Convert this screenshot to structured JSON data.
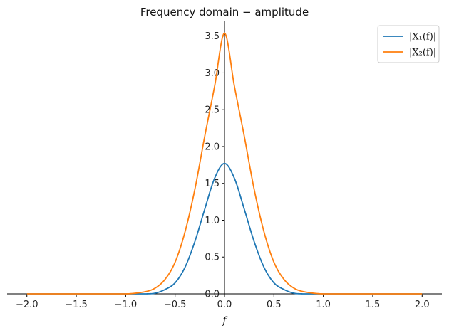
{
  "chart_data": {
    "type": "line",
    "title": "Frequency domain − amplitude",
    "xlabel": "f",
    "ylabel": "",
    "xlim": [
      -2.0,
      2.0
    ],
    "ylim": [
      0.0,
      3.7
    ],
    "x_ticks": [
      "−2.0",
      "−1.5",
      "−1.0",
      "−0.5",
      "0.0",
      "0.5",
      "1.0",
      "1.5",
      "2.0"
    ],
    "y_ticks": [
      "0.0",
      "0.5",
      "1.0",
      "1.5",
      "2.0",
      "2.5",
      "3.0",
      "3.5"
    ],
    "grid": false,
    "legend_position": "top-right",
    "series": [
      {
        "name": "|X₁(f)|",
        "color": "#1f77b4",
        "x": [
          -2.0,
          -1.0,
          -0.8,
          -0.7,
          -0.6,
          -0.5,
          -0.4,
          -0.3,
          -0.2,
          -0.1,
          0.0,
          0.1,
          0.2,
          0.3,
          0.4,
          0.5,
          0.6,
          0.7,
          0.8,
          1.0,
          2.0
        ],
        "y": [
          0.0,
          0.0,
          0.0,
          0.01,
          0.06,
          0.15,
          0.36,
          0.71,
          1.15,
          1.57,
          1.77,
          1.57,
          1.15,
          0.71,
          0.36,
          0.15,
          0.06,
          0.01,
          0.0,
          0.0,
          0.0
        ]
      },
      {
        "name": "|X₂(f)|",
        "color": "#ff7f0e",
        "x": [
          -2.0,
          -1.0,
          -0.8,
          -0.7,
          -0.6,
          -0.5,
          -0.4,
          -0.3,
          -0.2,
          -0.1,
          0.0,
          0.1,
          0.2,
          0.3,
          0.4,
          0.5,
          0.6,
          0.7,
          0.8,
          1.0,
          2.0
        ],
        "y": [
          0.0,
          0.0,
          0.03,
          0.08,
          0.2,
          0.43,
          0.84,
          1.42,
          2.14,
          2.82,
          3.54,
          2.82,
          2.14,
          1.42,
          0.84,
          0.43,
          0.2,
          0.08,
          0.03,
          0.0,
          0.0
        ]
      }
    ]
  }
}
